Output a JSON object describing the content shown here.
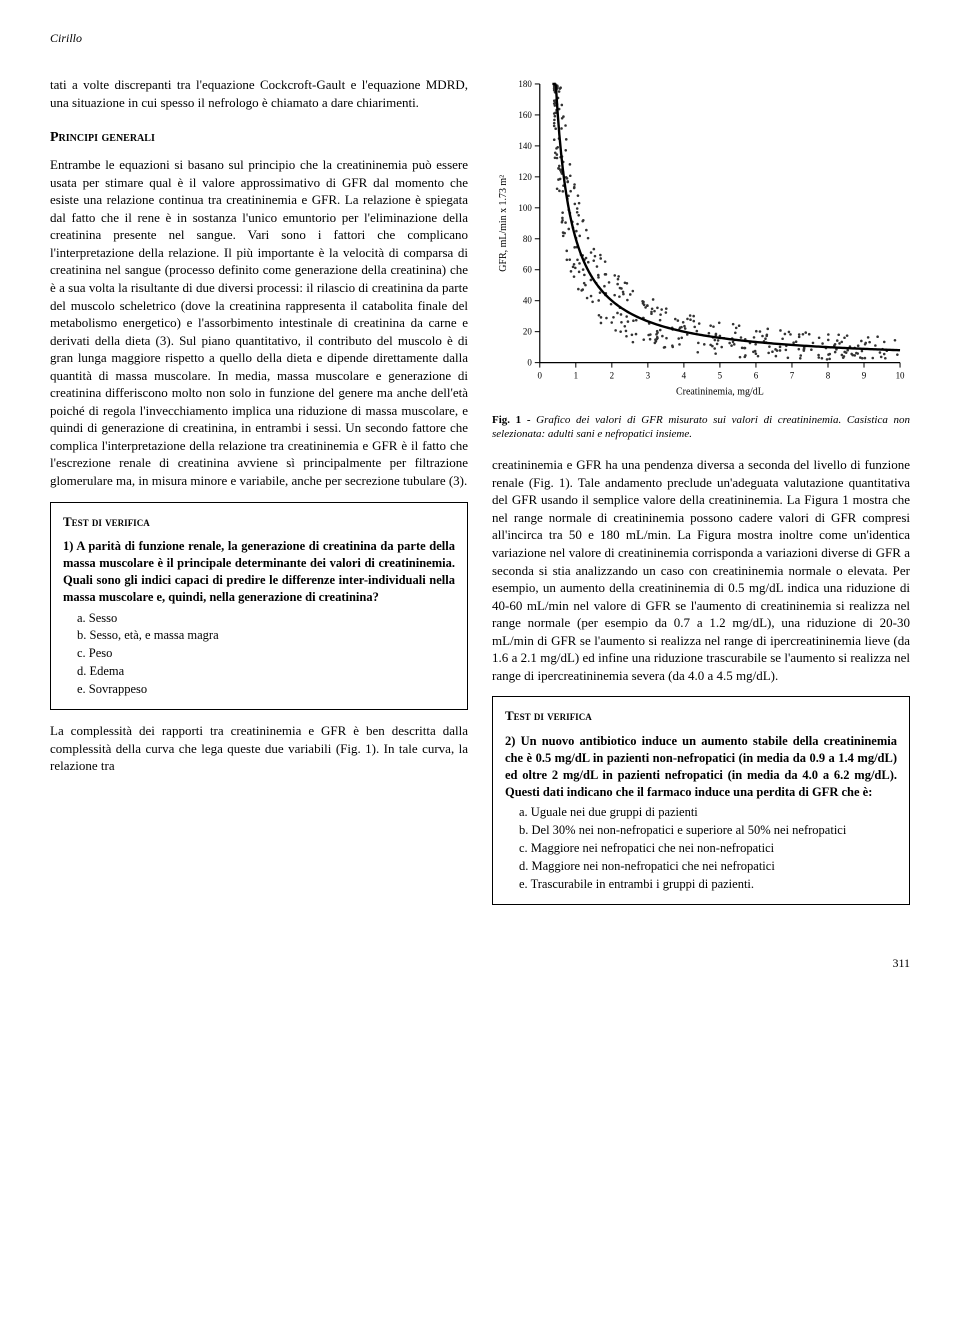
{
  "header": {
    "author": "Cirillo"
  },
  "left": {
    "intro": "tati a volte discrepanti tra l'equazione Cockcroft-Gault e l'equazione MDRD, una situazione in cui spesso il nefrologo è chiamato a dare chiarimenti.",
    "section_title": "Principi generali",
    "body": "Entrambe le equazioni si basano sul principio che la creatininemia può essere usata per stimare qual è il valore approssimativo di GFR dal momento che esiste una relazione continua tra creatininemia e GFR. La relazione è spiegata dal fatto che il rene è in sostanza l'unico emuntorio per l'eliminazione della creatinina presente nel sangue. Vari sono i fattori che complicano l'interpretazione della relazione. Il più importante è la velocità di comparsa di creatinina nel sangue (processo definito come generazione della creatinina) che è a sua volta la risultante di due diversi processi: il rilascio di creatinina da parte del muscolo scheletrico (dove la creatinina rappresenta il catabolita finale del metabolismo energetico) e l'assorbimento intestinale di creatinina da carne e derivati della dieta (3). Sul piano quantitativo, il contributo del muscolo è di gran lunga maggiore rispetto a quello della dieta e dipende direttamente dalla quantità di massa muscolare. In media, massa muscolare e generazione di creatinina differiscono molto non solo in funzione del genere ma anche dell'età poiché di regola l'invecchiamento implica una riduzione di massa muscolare, e quindi di generazione di creatinina, in entrambi i sessi. Un secondo fattore che complica l'interpretazione della relazione tra creatininemia e GFR è il fatto che l'escrezione renale di creatinina avviene sì principalmente per filtrazione glomerulare ma, in misura minore e variabile, anche per secrezione tubulare (3).",
    "after_test": "La complessità dei rapporti tra creatininemia e GFR è ben descritta dalla complessità della curva che lega queste due variabili (Fig. 1). In tale curva, la relazione tra"
  },
  "right": {
    "fig_caption_bold": "Fig. 1 -",
    "fig_caption": " Grafico dei valori di GFR misurato sui valori di creatininemia.  Casistica non selezionata: adulti sani e nefropatici insieme.",
    "body": "creatininemia e GFR ha una pendenza diversa a seconda del livello di funzione renale (Fig. 1). Tale andamento preclude un'adeguata valutazione quantitativa del GFR usando il semplice valore della creatininemia. La Figura 1 mostra che nel range normale di creatininemia possono cadere valori di GFR compresi all'incirca tra 50 e 180 mL/min. La Figura mostra inoltre come un'identica variazione nel valore di creatininemia corrisponda a variazioni diverse di GFR a seconda si stia analizzando un caso con creatininemia normale o elevata. Per esempio, un aumento della creatininemia di 0.5 mg/dL indica una riduzione di 40-60 mL/min nel valore di GFR se l'aumento di creatininemia si realizza nel range normale (per esempio da 0.7 a 1.2 mg/dL), una riduzione di 20-30 mL/min di GFR se l'aumento si realizza nel range di ipercreatininemia lieve (da 1.6 a 2.1 mg/dL) ed infine una riduzione trascurabile se l'aumento si realizza nel range di ipercreatininemia severa (da 4.0 a 4.5 mg/dL)."
  },
  "test1": {
    "title": "Test di verifica",
    "question": "1) A parità di funzione renale, la generazione di creatinina da parte della massa muscolare è il principale determinante dei valori di creatininemia.  Quali sono gli indici capaci di predire le differenze inter-individuali nella massa muscolare e, quindi, nella generazione di creatinina?",
    "a": "a. Sesso",
    "b": "b. Sesso, età, e massa magra",
    "c": "c. Peso",
    "d": "d. Edema",
    "e": "e. Sovrappeso"
  },
  "test2": {
    "title": "Test di verifica",
    "question": "2) Un nuovo antibiotico induce un aumento stabile della creatininemia che è 0.5 mg/dL in pazienti non-nefropatici (in media da 0.9 a 1.4 mg/dL) ed oltre 2 mg/dL in pazienti nefropatici (in media da 4.0 a 6.2 mg/dL).  Questi dati indicano che il farmaco induce una perdita di GFR che è:",
    "a": "a. Uguale nei due gruppi di pazienti",
    "b": "b. Del 30% nei non-nefropatici e superiore al 50% nei nefropatici",
    "c": "c. Maggiore nei nefropatici che nei non-nefropatici",
    "d": "d. Maggiore nei non-nefropatici che nei nefropatici",
    "e": "e. Trascurabile in entrambi i gruppi di pazienti."
  },
  "chart": {
    "type": "scatter",
    "xlabel": "Creatininemia, mg/dL",
    "ylabel": "GFR, mL/min x 1.73 m²",
    "xlim": [
      0,
      10
    ],
    "ylim": [
      0,
      180
    ],
    "xtick_step": 1,
    "ytick_step": 20,
    "background_color": "#ffffff",
    "axis_color": "#000000",
    "point_color": "#333333",
    "point_radius": 1.3,
    "curve_color": "#000000",
    "curve_width": 2.4,
    "label_fontsize": 10,
    "tick_fontsize": 9,
    "curve_k": 80,
    "n_points": 420,
    "noise_y": 28
  },
  "page_number": "311"
}
